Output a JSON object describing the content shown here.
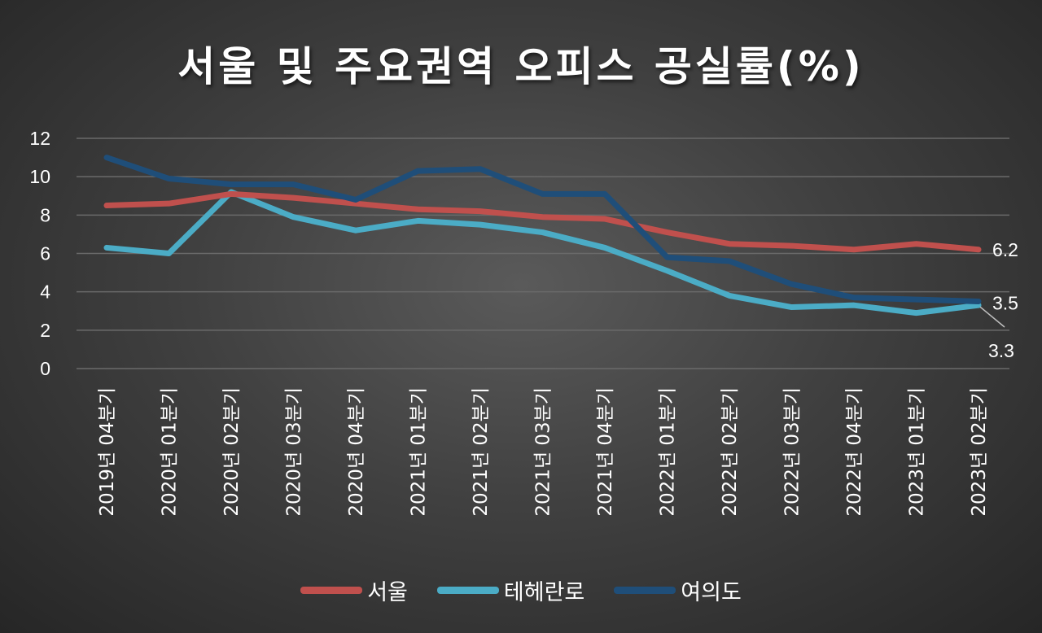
{
  "chart_data": {
    "type": "line",
    "title": "서울 및 주요권역 오피스 공실률(%)",
    "categories": [
      "2019년 04분기",
      "2020년 01분기",
      "2020년 02분기",
      "2020년 03분기",
      "2020년 04분기",
      "2021년 01분기",
      "2021년 02분기",
      "2021년 03분기",
      "2021년 04분기",
      "2022년 01분기",
      "2022년 02분기",
      "2022년 03분기",
      "2022년 04분기",
      "2023년 01분기",
      "2023년 02분기"
    ],
    "ylim": [
      0,
      12
    ],
    "yticks": [
      "0",
      "2",
      "4",
      "6",
      "8",
      "10",
      "12"
    ],
    "grid": true,
    "legend_position": "bottom",
    "series": [
      {
        "name": "서울",
        "color": "#c0504d",
        "values": [
          8.5,
          8.6,
          9.1,
          8.9,
          8.6,
          8.3,
          8.2,
          7.9,
          7.8,
          7.1,
          6.5,
          6.4,
          6.2,
          6.5,
          6.2
        ],
        "end_label": "6.2"
      },
      {
        "name": "테헤란로",
        "color": "#4bacc6",
        "values": [
          6.3,
          6.0,
          9.2,
          7.9,
          7.2,
          7.7,
          7.5,
          7.1,
          6.3,
          5.1,
          3.8,
          3.2,
          3.3,
          2.9,
          3.3
        ],
        "end_label": "3.3"
      },
      {
        "name": "여의도",
        "color": "#1f4e79",
        "values": [
          11.0,
          9.9,
          9.6,
          9.6,
          8.8,
          10.3,
          10.4,
          9.1,
          9.1,
          5.8,
          5.6,
          4.4,
          3.7,
          3.6,
          3.5
        ],
        "end_label": "3.5"
      }
    ]
  }
}
